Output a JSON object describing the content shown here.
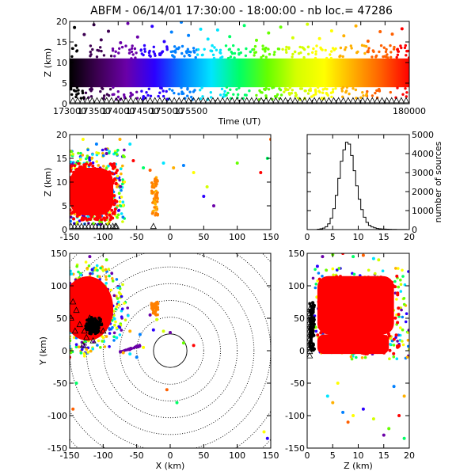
{
  "title": "ABFM - 06/14/01 17:30:00 - 18:00:00 - nb loc.=   47286",
  "palette": [
    "#000000",
    "#3d0052",
    "#6a00a8",
    "#2b00ff",
    "#0080ff",
    "#00e5ff",
    "#00ff66",
    "#66ff00",
    "#d4ff00",
    "#ffff00",
    "#ffb000",
    "#ff6000",
    "#ff0000"
  ],
  "chart_data": [
    {
      "id": "time-height",
      "type": "scatter",
      "xlabel": "Time (UT)",
      "ylabel": "Z (km)",
      "xlim": [
        173000,
        180000
      ],
      "ylim": [
        0,
        20
      ],
      "xticks": [
        173000,
        173500,
        174000,
        174500,
        175000,
        175500,
        176000,
        176500,
        177000,
        177500,
        178000,
        178500,
        179000,
        179500,
        180000
      ],
      "xtick_labels": [
        "173000",
        "173500",
        "174000",
        "174500",
        "175000",
        "175500",
        "180000"
      ],
      "xtick_label_values": [
        173000,
        173500,
        174000,
        174500,
        175000,
        175500,
        180000
      ],
      "yticks": [
        0,
        5,
        10,
        15,
        20
      ],
      "main_band_km": [
        4,
        11
      ],
      "outlier_points": [
        [
          173100,
          18.5
        ],
        [
          173300,
          16.8
        ],
        [
          173500,
          19.2
        ],
        [
          173650,
          15.5
        ],
        [
          173800,
          17.6
        ],
        [
          174050,
          14.8
        ],
        [
          174200,
          19.5
        ],
        [
          174400,
          16.2
        ],
        [
          174700,
          18.8
        ],
        [
          174950,
          15.1
        ],
        [
          175100,
          17.4
        ],
        [
          175300,
          19.8
        ],
        [
          175450,
          16.6
        ],
        [
          175700,
          18.1
        ],
        [
          175850,
          15.7
        ],
        [
          176050,
          17.9
        ],
        [
          176300,
          16.3
        ],
        [
          176600,
          19.0
        ],
        [
          176850,
          15.4
        ],
        [
          177100,
          17.2
        ],
        [
          177350,
          18.6
        ],
        [
          177600,
          16.0
        ],
        [
          177900,
          19.3
        ],
        [
          178150,
          15.8
        ],
        [
          178400,
          17.7
        ],
        [
          178650,
          16.5
        ],
        [
          178900,
          18.9
        ],
        [
          179150,
          15.2
        ],
        [
          179400,
          17.5
        ],
        [
          179650,
          16.9
        ],
        [
          179850,
          18.2
        ]
      ],
      "marker_row_km": 0.3
    },
    {
      "id": "x-height",
      "type": "scatter",
      "xlabel": "",
      "ylabel": "Z (km)",
      "xlim": [
        -150,
        150
      ],
      "ylim": [
        0,
        20
      ],
      "xticks": [
        -150,
        -100,
        -50,
        0,
        50,
        100,
        150
      ],
      "yticks": [
        0,
        5,
        10,
        15,
        20
      ],
      "main_cluster": {
        "x": [
          -150,
          -85
        ],
        "z": [
          3,
          13
        ]
      },
      "secondary_cluster": {
        "x": [
          -28,
          -18
        ],
        "z": [
          3,
          11
        ]
      },
      "outlier_points": [
        [
          -95,
          16
        ],
        [
          -70,
          15.5
        ],
        [
          -55,
          14.5
        ],
        [
          -40,
          13
        ],
        [
          -30,
          12.5
        ],
        [
          -10,
          14
        ],
        [
          5,
          13
        ],
        [
          20,
          13.5
        ],
        [
          35,
          12
        ],
        [
          50,
          7
        ],
        [
          55,
          9
        ],
        [
          65,
          5
        ],
        [
          100,
          14
        ],
        [
          135,
          12
        ],
        [
          145,
          15
        ],
        [
          150,
          19
        ],
        [
          -60,
          18
        ],
        [
          -75,
          19
        ],
        [
          -110,
          18
        ],
        [
          -130,
          19
        ]
      ],
      "marker_row_km": 0.3
    },
    {
      "id": "source-histogram",
      "type": "bar",
      "xlabel": "",
      "ylabel": "number of sources",
      "xlim": [
        0,
        20
      ],
      "ylim": [
        0,
        5000
      ],
      "xticks": [
        0,
        5,
        10,
        15,
        20
      ],
      "yticks": [
        0,
        1000,
        2000,
        3000,
        4000,
        5000
      ],
      "bin_width_km": 0.5,
      "bin_start_km": [
        2,
        2.5,
        3,
        3.5,
        4,
        4.5,
        5,
        5.5,
        6,
        6.5,
        7,
        7.5,
        8,
        8.5,
        9,
        9.5,
        10,
        10.5,
        11,
        11.5,
        12,
        12.5,
        13,
        13.5,
        14,
        14.5,
        15,
        15.5,
        16,
        16.5,
        17,
        17.5,
        18,
        18.5,
        19,
        19.5
      ],
      "counts": [
        20,
        40,
        80,
        150,
        300,
        600,
        1100,
        1800,
        2700,
        3600,
        4200,
        4600,
        4500,
        3900,
        3100,
        2300,
        1600,
        1050,
        650,
        380,
        220,
        140,
        90,
        60,
        40,
        30,
        25,
        20,
        15,
        10,
        8,
        6,
        5,
        4,
        3,
        2
      ]
    },
    {
      "id": "plan-view",
      "type": "scatter",
      "xlabel": "X (km)",
      "ylabel": "Y (km)",
      "xlim": [
        -150,
        150
      ],
      "ylim": [
        -150,
        150
      ],
      "xticks": [
        -150,
        -100,
        -50,
        0,
        50,
        100,
        150
      ],
      "yticks": [
        -150,
        -100,
        -50,
        0,
        50,
        100,
        150
      ],
      "range_rings_km": [
        25,
        50,
        75,
        100,
        125,
        150,
        175,
        200
      ],
      "main_cluster_center": [
        -125,
        65
      ],
      "stations": [
        [
          -145,
          75
        ],
        [
          -140,
          62
        ],
        [
          -148,
          50
        ],
        [
          -135,
          40
        ],
        [
          -128,
          30
        ],
        [
          -120,
          50
        ],
        [
          -112,
          42
        ],
        [
          -105,
          45
        ],
        [
          -118,
          35
        ],
        [
          -100,
          30
        ],
        [
          -125,
          20
        ],
        [
          -115,
          15
        ],
        [
          -130,
          8
        ],
        [
          -142,
          30
        ]
      ],
      "secondary_cluster": {
        "x": [
          -28,
          -18
        ],
        "y": [
          55,
          75
        ]
      },
      "outlier_points": [
        [
          -120,
          145
        ],
        [
          -95,
          140
        ],
        [
          -150,
          -10
        ],
        [
          -140,
          -50
        ],
        [
          -145,
          -90
        ],
        [
          -80,
          20
        ],
        [
          -60,
          30
        ],
        [
          -45,
          25
        ],
        [
          -40,
          5
        ],
        [
          -25,
          32
        ],
        [
          -10,
          30
        ],
        [
          0,
          28
        ],
        [
          20,
          12
        ],
        [
          35,
          8
        ],
        [
          10,
          -80
        ],
        [
          -5,
          -60
        ],
        [
          -60,
          -5
        ],
        [
          -70,
          -3
        ],
        [
          -50,
          -10
        ],
        [
          140,
          -125
        ],
        [
          145,
          -135
        ],
        [
          -20,
          48
        ],
        [
          -30,
          55
        ]
      ]
    },
    {
      "id": "height-y",
      "type": "scatter",
      "xlabel": "Z (km)",
      "ylabel": "",
      "xlim": [
        0,
        20
      ],
      "ylim": [
        -150,
        150
      ],
      "xticks": [
        0,
        5,
        10,
        15,
        20
      ],
      "yticks": [
        -150,
        -100,
        -50,
        0,
        50,
        100,
        150
      ],
      "main_cluster": {
        "z": [
          1,
          18
        ],
        "y": [
          25,
          115
        ]
      },
      "lower_cluster": {
        "z": [
          1,
          17
        ],
        "y": [
          -5,
          25
        ]
      },
      "outlier_points": [
        [
          3,
          145
        ],
        [
          5,
          148
        ],
        [
          7,
          150
        ],
        [
          9,
          145
        ],
        [
          11,
          147
        ],
        [
          13,
          142
        ],
        [
          5,
          -80
        ],
        [
          7,
          -95
        ],
        [
          9,
          -100
        ],
        [
          11,
          -90
        ],
        [
          13,
          -105
        ],
        [
          15,
          -130
        ],
        [
          16,
          -120
        ],
        [
          18,
          -100
        ],
        [
          19,
          -135
        ],
        [
          8,
          -110
        ],
        [
          4,
          -70
        ],
        [
          19,
          -70
        ],
        [
          17,
          -55
        ],
        [
          6,
          -50
        ],
        [
          2,
          130
        ],
        [
          14,
          140
        ]
      ],
      "marker_column_km": 0.5
    }
  ]
}
